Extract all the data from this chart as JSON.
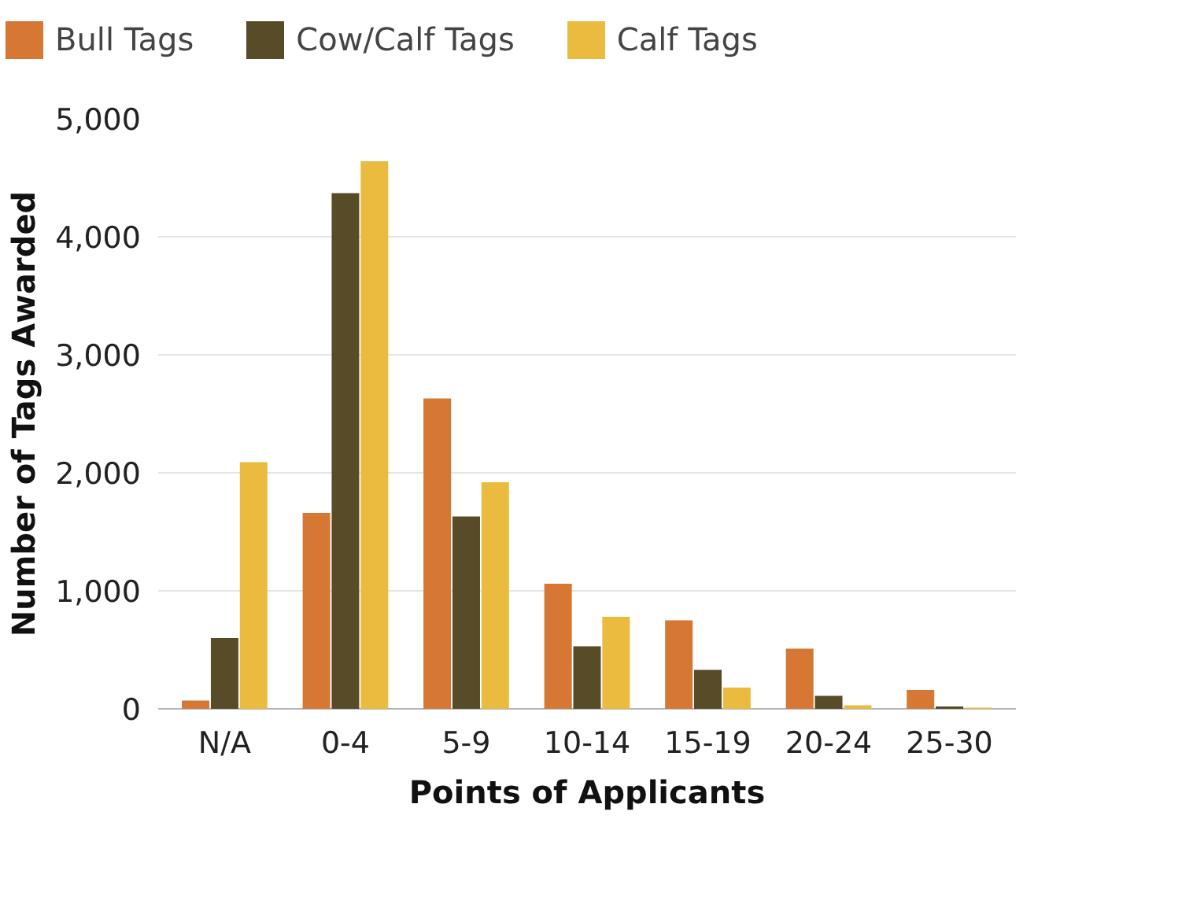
{
  "chart_data": {
    "type": "bar",
    "xlabel": "Points of Applicants",
    "ylabel": "Number of Tags Awarded",
    "categories": [
      "N/A",
      "0-4",
      "5-9",
      "10-14",
      "15-19",
      "20-24",
      "25-30"
    ],
    "series": [
      {
        "name": "Bull Tags",
        "color": "#d67734",
        "values": [
          70,
          1660,
          2630,
          1060,
          750,
          510,
          160
        ]
      },
      {
        "name": "Cow/Calf Tags",
        "color": "#574b28",
        "values": [
          600,
          4370,
          1630,
          530,
          330,
          110,
          20
        ]
      },
      {
        "name": "Calf Tags",
        "color": "#ebbb3f",
        "values": [
          2090,
          4640,
          1920,
          780,
          180,
          30,
          10
        ]
      }
    ],
    "ylim": [
      0,
      5000
    ],
    "yticks": [
      {
        "value": 0,
        "label": "0"
      },
      {
        "value": 1000,
        "label": "1,000"
      },
      {
        "value": 2000,
        "label": "2,000"
      },
      {
        "value": 3000,
        "label": "3,000"
      },
      {
        "value": 4000,
        "label": "4,000"
      },
      {
        "value": 5000,
        "label": "5,000"
      }
    ],
    "grid": "y",
    "legend": "top"
  }
}
